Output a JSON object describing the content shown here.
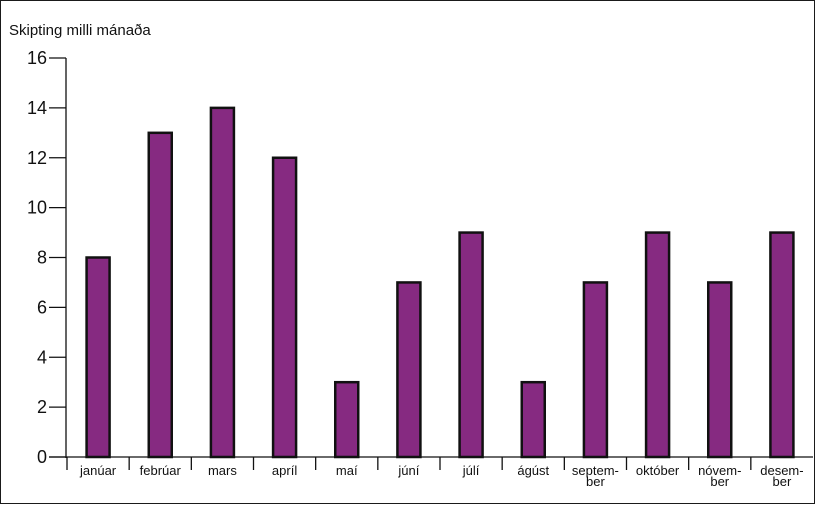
{
  "chart_data": {
    "type": "bar",
    "title": "Skipting milli mánaða",
    "xlabel": "",
    "ylabel": "",
    "categories": [
      [
        "janúar"
      ],
      [
        "febrúar"
      ],
      [
        "mars"
      ],
      [
        "apríl"
      ],
      [
        "maí"
      ],
      [
        "júní"
      ],
      [
        "júlí"
      ],
      [
        "ágúst"
      ],
      [
        "septem-",
        "ber"
      ],
      [
        "október"
      ],
      [
        "nóvem-",
        "ber"
      ],
      [
        "desem-",
        "ber"
      ]
    ],
    "values": [
      8,
      13,
      14,
      12,
      3,
      7,
      9,
      3,
      7,
      9,
      7,
      9
    ],
    "ylim": [
      0,
      16
    ],
    "yticks": [
      "0",
      "2",
      "4",
      "6",
      "8",
      "10",
      "12",
      "14",
      "16"
    ],
    "grid": false,
    "legend": "none",
    "colors": {
      "bar": "#862a81",
      "outline": "#111111",
      "background": "#ffffff"
    }
  }
}
